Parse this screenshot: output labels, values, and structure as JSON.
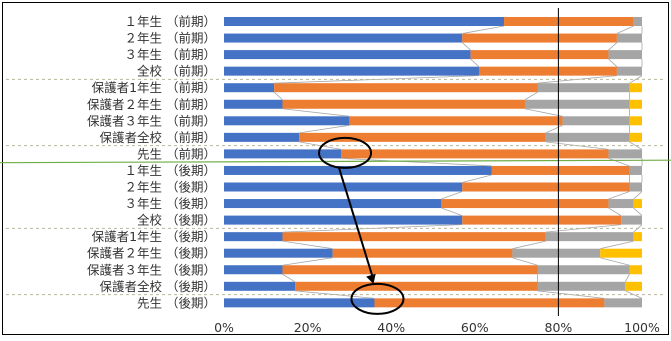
{
  "chart_data": {
    "type": "bar",
    "orientation": "horizontal-stacked-100",
    "categories": [
      "１年生 （前期）",
      "２年生 （前期）",
      "３年生 （前期）",
      "全校 （前期）",
      "保護者1年生 （前期）",
      "保護者２年生 （前期）",
      "保護者３年生 （前期）",
      "保護者全校 （前期）",
      "先生 （前期）",
      "１年生 （後期）",
      "２年生 （後期）",
      "３年生 （後期）",
      "全校 （後期）",
      "保護者1年生 （後期）",
      "保護者２年生 （後期）",
      "保護者３年生 （後期）",
      "保護者全校 （後期）",
      "先生 （後期）"
    ],
    "series": [
      {
        "color": "#4472C4",
        "values": [
          67,
          57,
          59,
          61,
          12,
          14,
          30,
          18,
          28,
          64,
          57,
          52,
          57,
          14,
          26,
          14,
          17,
          36
        ]
      },
      {
        "color": "#ED7D31",
        "values": [
          31,
          37,
          33,
          33,
          63,
          58,
          51,
          59,
          64,
          33,
          40,
          40,
          38,
          63,
          43,
          61,
          58,
          55
        ]
      },
      {
        "color": "#A5A5A5",
        "values": [
          2,
          6,
          8,
          6,
          22,
          25,
          16,
          20,
          8,
          3,
          3,
          6,
          5,
          21,
          21,
          22,
          21,
          9
        ]
      },
      {
        "color": "#FFC000",
        "values": [
          0,
          0,
          0,
          0,
          3,
          3,
          3,
          3,
          0,
          0,
          0,
          2,
          0,
          2,
          10,
          3,
          4,
          0
        ]
      }
    ],
    "xlim": [
      0,
      100
    ],
    "xticks": [
      "0%",
      "20%",
      "40%",
      "60%",
      "80%",
      "100%"
    ],
    "reference_line_at": 80,
    "group_separators_after": [
      "全校 （前期）",
      "保護者全校 （前期）",
      "全校 （後期）",
      "保護者全校 （後期）"
    ],
    "green_separator_after": "先生 （前期）",
    "annotation": {
      "type": "arrow",
      "from_category": "先生 （前期）",
      "from_value": 28,
      "to_category": "先生 （後期）",
      "to_value": 36,
      "circles_at_both_ends": true
    },
    "gridlines": false,
    "legend": "none"
  }
}
